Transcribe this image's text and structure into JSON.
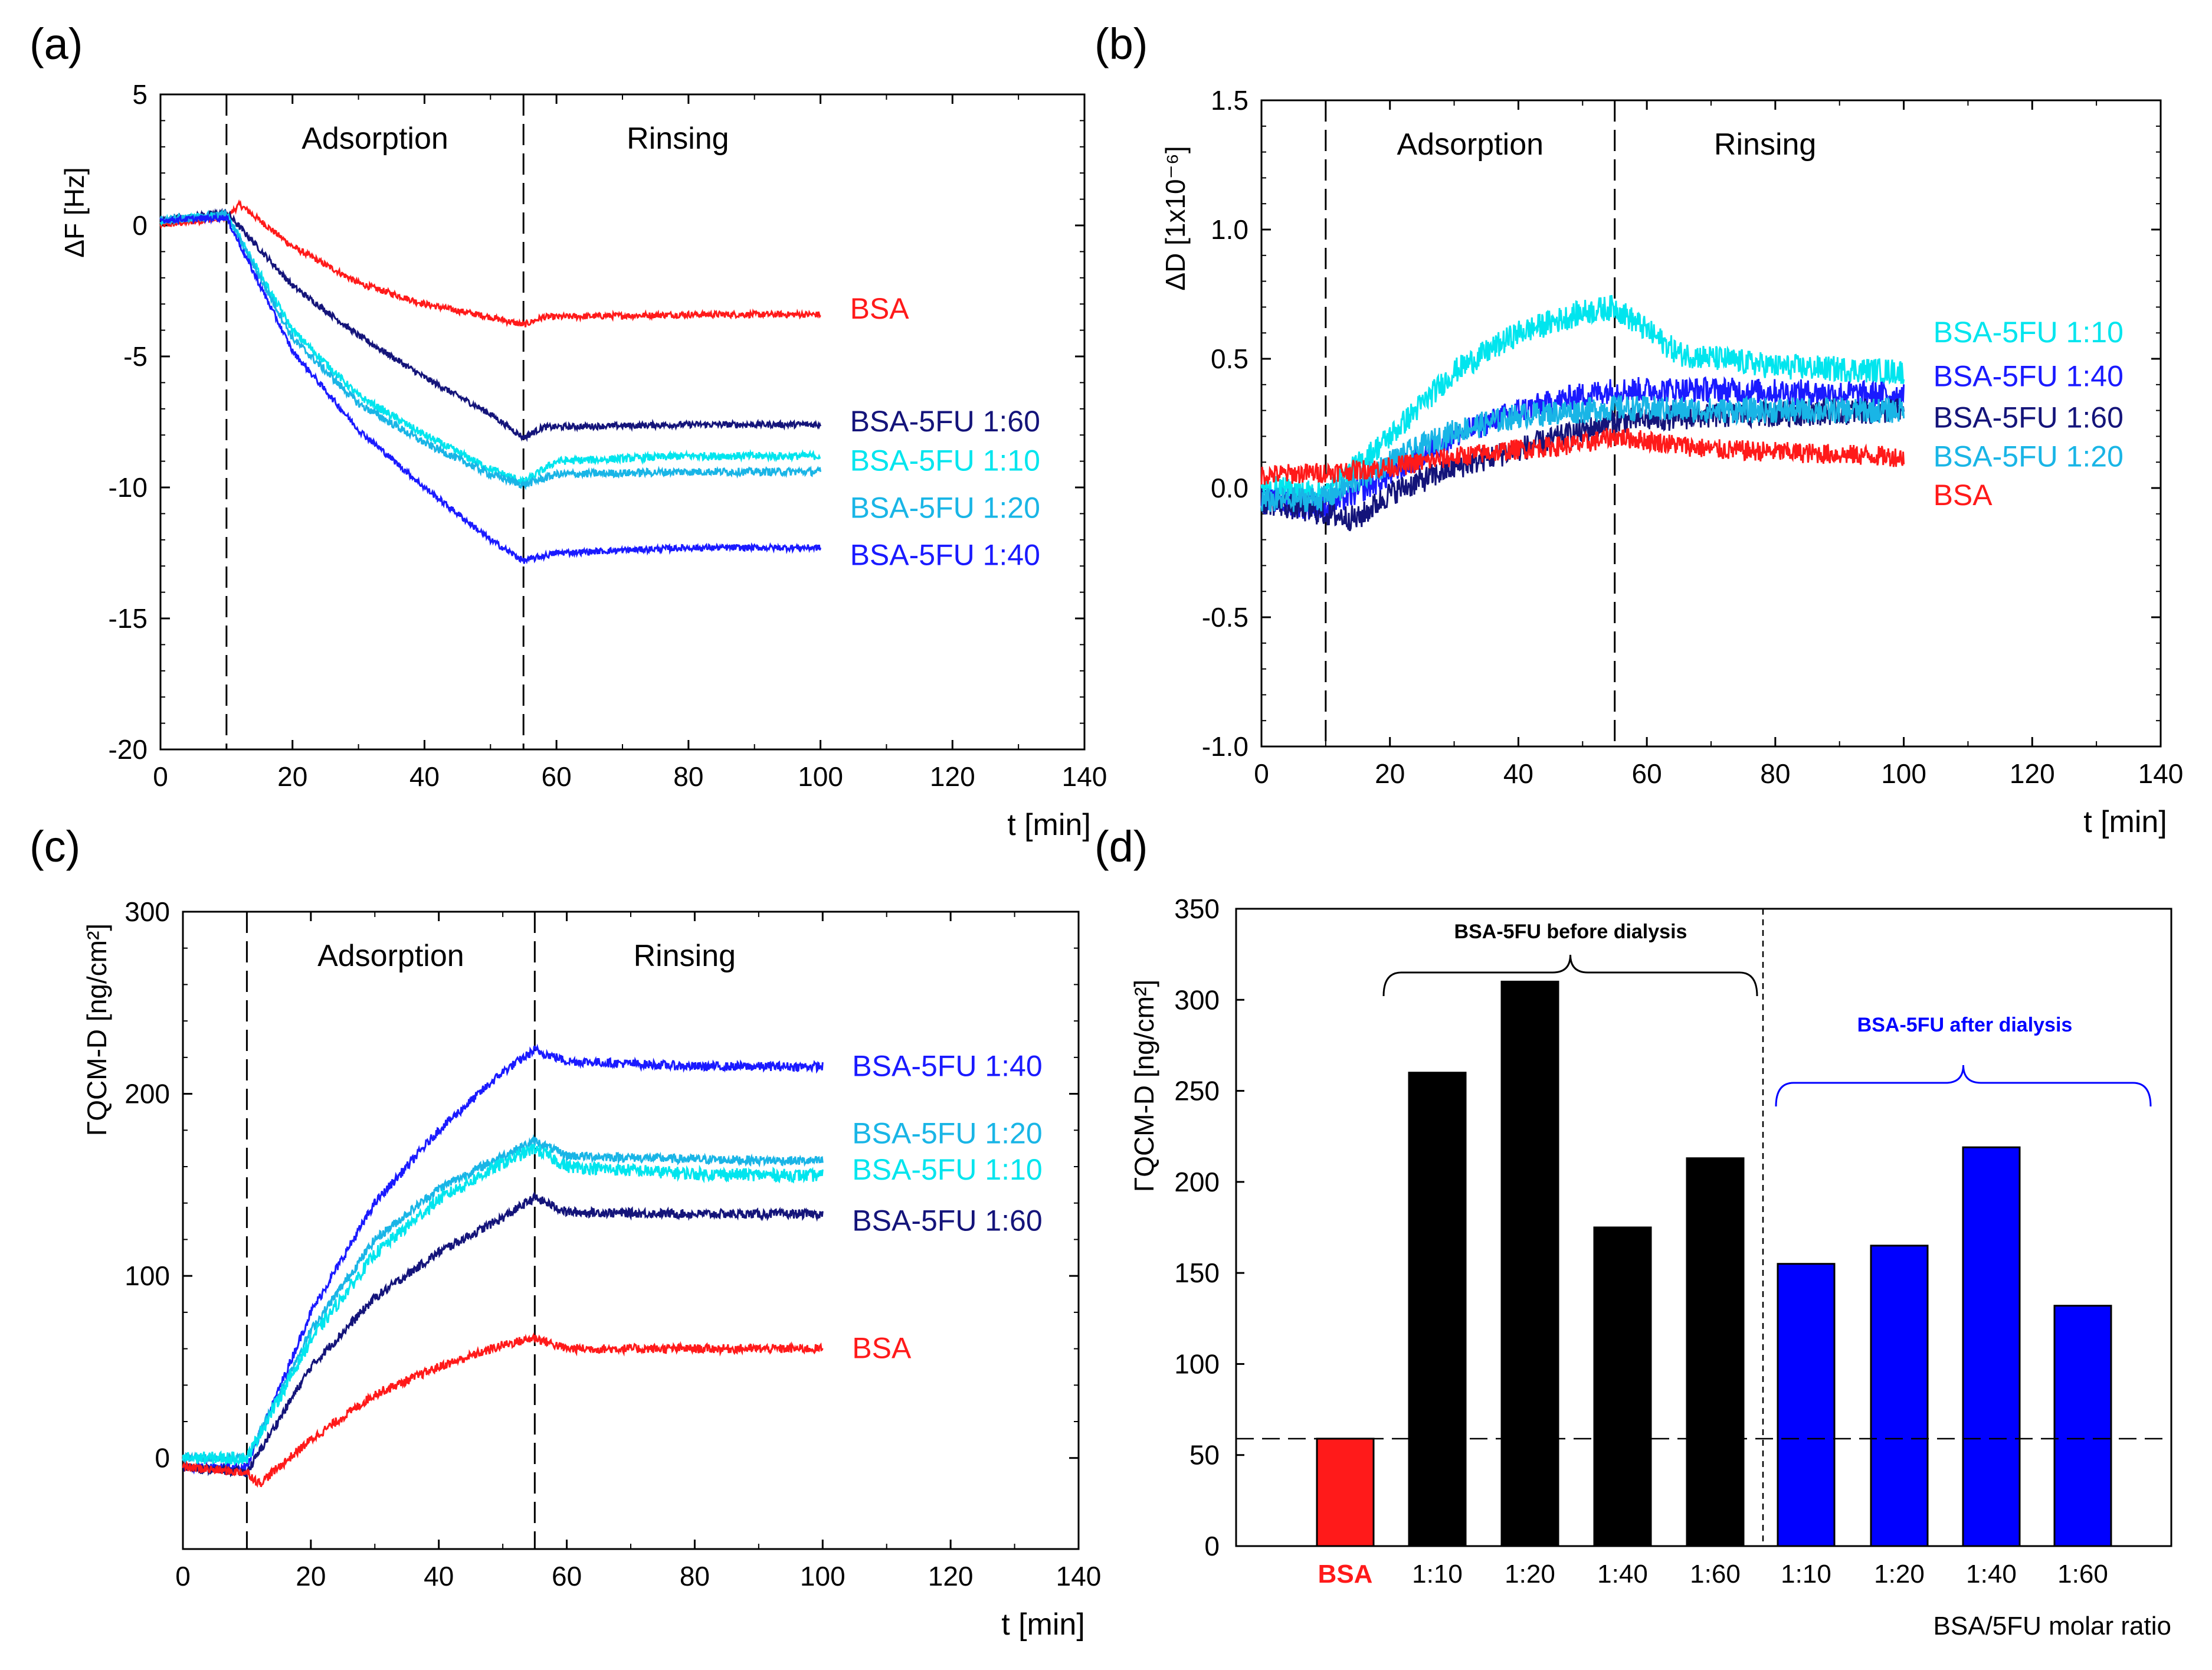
{
  "panels": [
    "(a)",
    "(b)",
    "(c)",
    "(d)"
  ],
  "colors": {
    "BSA": "#ff1a1a",
    "1:60": "#14147a",
    "1:10": "#00e5ee",
    "1:20": "#19b5e6",
    "1:40": "#1a1aff",
    "bar_before": "#000000",
    "bar_after": "#0000ff"
  },
  "chart_data": [
    {
      "id": "a",
      "type": "line",
      "ylabel": "ΔF [Hz]",
      "xlabel": "t [min]",
      "xlim": [
        0,
        140
      ],
      "ylim": [
        -20,
        5
      ],
      "xticks": [
        0,
        20,
        40,
        60,
        80,
        100,
        120,
        140
      ],
      "yticks": [
        5,
        0,
        -5,
        -10,
        -15,
        -20
      ],
      "vlines": [
        10,
        55
      ],
      "phase_labels": [
        "Adsorption",
        "Rinsing"
      ],
      "series": [
        {
          "name": "BSA",
          "label": "BSA",
          "color_key": "BSA",
          "noise": 0.12,
          "points": [
            [
              0,
              0
            ],
            [
              10,
              0.3
            ],
            [
              12,
              0.8
            ],
            [
              20,
              -0.8
            ],
            [
              30,
              -2.2
            ],
            [
              40,
              -3
            ],
            [
              50,
              -3.5
            ],
            [
              55,
              -3.8
            ],
            [
              58,
              -3.5
            ],
            [
              80,
              -3.4
            ],
            [
              100,
              -3.4
            ]
          ],
          "label_y": -3.2
        },
        {
          "name": "BSA-5FU 1:60",
          "label": "BSA-5FU 1:60",
          "color_key": "1:60",
          "noise": 0.12,
          "points": [
            [
              0,
              0.2
            ],
            [
              10,
              0.5
            ],
            [
              20,
              -2.3
            ],
            [
              30,
              -4.2
            ],
            [
              40,
              -5.8
            ],
            [
              50,
              -7.2
            ],
            [
              55,
              -8.1
            ],
            [
              58,
              -7.7
            ],
            [
              80,
              -7.6
            ],
            [
              100,
              -7.6
            ]
          ],
          "label_y": -7.5
        },
        {
          "name": "BSA-5FU 1:10",
          "label": "BSA-5FU 1:10",
          "color_key": "1:10",
          "noise": 0.15,
          "points": [
            [
              0,
              0.2
            ],
            [
              10,
              0.4
            ],
            [
              20,
              -4
            ],
            [
              30,
              -6.5
            ],
            [
              40,
              -8
            ],
            [
              50,
              -9.3
            ],
            [
              55,
              -9.8
            ],
            [
              60,
              -9
            ],
            [
              80,
              -8.8
            ],
            [
              100,
              -8.8
            ]
          ],
          "label_y": -9.0
        },
        {
          "name": "BSA-5FU 1:20",
          "label": "BSA-5FU 1:20",
          "color_key": "1:20",
          "noise": 0.15,
          "points": [
            [
              0,
              0.2
            ],
            [
              10,
              0.4
            ],
            [
              20,
              -4.3
            ],
            [
              30,
              -6.8
            ],
            [
              40,
              -8.3
            ],
            [
              50,
              -9.5
            ],
            [
              55,
              -9.9
            ],
            [
              60,
              -9.5
            ],
            [
              80,
              -9.4
            ],
            [
              100,
              -9.4
            ]
          ],
          "label_y": -10.8
        },
        {
          "name": "BSA-5FU 1:40",
          "label": "BSA-5FU 1:40",
          "color_key": "1:40",
          "noise": 0.12,
          "points": [
            [
              0,
              0.2
            ],
            [
              10,
              0.3
            ],
            [
              20,
              -4.8
            ],
            [
              30,
              -7.8
            ],
            [
              40,
              -10
            ],
            [
              50,
              -12
            ],
            [
              55,
              -12.8
            ],
            [
              60,
              -12.5
            ],
            [
              80,
              -12.3
            ],
            [
              100,
              -12.3
            ]
          ],
          "label_y": -12.6
        }
      ]
    },
    {
      "id": "b",
      "type": "line",
      "ylabel": "ΔD [1x10⁻⁶]",
      "xlabel": "t [min]",
      "xlim": [
        0,
        140
      ],
      "ylim": [
        -1.0,
        1.5
      ],
      "xticks": [
        0,
        20,
        40,
        60,
        80,
        100,
        120,
        140
      ],
      "yticks": [
        "1.5",
        "1.0",
        "0.5",
        "0.0",
        "-0.5",
        "-1.0"
      ],
      "vlines": [
        10,
        55
      ],
      "phase_labels": [
        "Adsorption",
        "Rinsing"
      ],
      "series": [
        {
          "name": "BSA-5FU 1:10",
          "label": "BSA-5FU 1:10",
          "color_key": "1:10",
          "noise": 0.05,
          "points": [
            [
              0,
              0
            ],
            [
              10,
              -0.02
            ],
            [
              20,
              0.2
            ],
            [
              30,
              0.45
            ],
            [
              40,
              0.6
            ],
            [
              50,
              0.68
            ],
            [
              55,
              0.7
            ],
            [
              65,
              0.52
            ],
            [
              80,
              0.47
            ],
            [
              100,
              0.45
            ]
          ],
          "label_y": 0.6
        },
        {
          "name": "BSA-5FU 1:40",
          "label": "BSA-5FU 1:40",
          "color_key": "1:40",
          "noise": 0.05,
          "points": [
            [
              0,
              -0.05
            ],
            [
              10,
              -0.08
            ],
            [
              20,
              0.05
            ],
            [
              30,
              0.2
            ],
            [
              40,
              0.3
            ],
            [
              50,
              0.36
            ],
            [
              55,
              0.38
            ],
            [
              70,
              0.38
            ],
            [
              100,
              0.36
            ]
          ],
          "label_y": 0.43
        },
        {
          "name": "BSA-5FU 1:60",
          "label": "BSA-5FU 1:60",
          "color_key": "1:60",
          "noise": 0.05,
          "points": [
            [
              0,
              -0.05
            ],
            [
              10,
              -0.1
            ],
            [
              15,
              -0.12
            ],
            [
              20,
              -0.02
            ],
            [
              30,
              0.08
            ],
            [
              40,
              0.15
            ],
            [
              50,
              0.22
            ],
            [
              55,
              0.26
            ],
            [
              70,
              0.28
            ],
            [
              100,
              0.3
            ]
          ],
          "label_y": 0.27
        },
        {
          "name": "BSA-5FU 1:20",
          "label": "BSA-5FU 1:20",
          "color_key": "1:20",
          "noise": 0.05,
          "points": [
            [
              0,
              -0.05
            ],
            [
              10,
              -0.04
            ],
            [
              20,
              0.1
            ],
            [
              30,
              0.22
            ],
            [
              40,
              0.28
            ],
            [
              50,
              0.3
            ],
            [
              55,
              0.31
            ],
            [
              70,
              0.3
            ],
            [
              100,
              0.3
            ]
          ],
          "label_y": 0.12
        },
        {
          "name": "BSA",
          "label": "BSA",
          "color_key": "BSA",
          "noise": 0.04,
          "points": [
            [
              0,
              0.05
            ],
            [
              10,
              0.06
            ],
            [
              20,
              0.08
            ],
            [
              30,
              0.12
            ],
            [
              40,
              0.15
            ],
            [
              50,
              0.17
            ],
            [
              55,
              0.2
            ],
            [
              70,
              0.15
            ],
            [
              100,
              0.12
            ]
          ],
          "label_y": -0.03
        }
      ]
    },
    {
      "id": "c",
      "type": "line",
      "ylabel": "ΓQCM-D [ng/cm²]",
      "xlabel": "t [min]",
      "xlim": [
        0,
        140
      ],
      "ylim": [
        -50,
        300
      ],
      "xticks": [
        0,
        20,
        40,
        60,
        80,
        100,
        120,
        140
      ],
      "yticks": [
        300,
        200,
        100,
        0
      ],
      "vlines": [
        10,
        55
      ],
      "phase_labels": [
        "Adsorption",
        "Rinsing"
      ],
      "series": [
        {
          "name": "BSA-5FU 1:40",
          "label": "BSA-5FU 1:40",
          "color_key": "1:40",
          "noise": 2.5,
          "points": [
            [
              0,
              -5
            ],
            [
              10,
              -5
            ],
            [
              20,
              80
            ],
            [
              30,
              140
            ],
            [
              40,
              180
            ],
            [
              50,
              212
            ],
            [
              55,
              224
            ],
            [
              60,
              218
            ],
            [
              80,
              215
            ],
            [
              100,
              215
            ]
          ],
          "label_y": 215
        },
        {
          "name": "BSA-5FU 1:20",
          "label": "BSA-5FU 1:20",
          "color_key": "1:20",
          "noise": 2.5,
          "points": [
            [
              0,
              0
            ],
            [
              10,
              0
            ],
            [
              20,
              70
            ],
            [
              30,
              120
            ],
            [
              40,
              148
            ],
            [
              50,
              166
            ],
            [
              55,
              174
            ],
            [
              60,
              166
            ],
            [
              80,
              164
            ],
            [
              100,
              163
            ]
          ],
          "label_y": 178
        },
        {
          "name": "BSA-5FU 1:10",
          "label": "BSA-5FU 1:10",
          "color_key": "1:10",
          "noise": 3.5,
          "points": [
            [
              0,
              0
            ],
            [
              10,
              0
            ],
            [
              20,
              65
            ],
            [
              30,
              112
            ],
            [
              40,
              142
            ],
            [
              50,
              162
            ],
            [
              55,
              170
            ],
            [
              60,
              160
            ],
            [
              80,
              156
            ],
            [
              100,
              155
            ]
          ],
          "label_y": 158
        },
        {
          "name": "BSA-5FU 1:60",
          "label": "BSA-5FU 1:60",
          "color_key": "1:60",
          "noise": 2.5,
          "points": [
            [
              0,
              -5
            ],
            [
              10,
              -8
            ],
            [
              20,
              50
            ],
            [
              30,
              88
            ],
            [
              40,
              113
            ],
            [
              50,
              132
            ],
            [
              55,
              143
            ],
            [
              60,
              135
            ],
            [
              80,
              134
            ],
            [
              100,
              134
            ]
          ],
          "label_y": 130
        },
        {
          "name": "BSA",
          "label": "BSA",
          "color_key": "BSA",
          "noise": 2.5,
          "points": [
            [
              0,
              -5
            ],
            [
              10,
              -8
            ],
            [
              12,
              -14
            ],
            [
              20,
              10
            ],
            [
              30,
              35
            ],
            [
              40,
              50
            ],
            [
              50,
              62
            ],
            [
              55,
              66
            ],
            [
              60,
              60
            ],
            [
              80,
              60
            ],
            [
              100,
              60
            ]
          ],
          "label_y": 60
        }
      ]
    },
    {
      "id": "d",
      "type": "bar",
      "ylabel": "ΓQCM-D [ng/cm²]",
      "xlabel": "BSA/5FU molar ratio",
      "ylim": [
        0,
        350
      ],
      "yticks": [
        350,
        300,
        250,
        200,
        150,
        100,
        50,
        0
      ],
      "categories": [
        "BSA",
        "1:10",
        "1:20",
        "1:40",
        "1:60",
        "1:10",
        "1:20",
        "1:40",
        "1:60"
      ],
      "values": [
        59,
        260,
        310,
        175,
        213,
        155,
        165,
        219,
        132
      ],
      "groups": [
        "BSA",
        "before",
        "before",
        "before",
        "before",
        "after",
        "after",
        "after",
        "after"
      ],
      "group_labels": {
        "before": "BSA-5FU before dialysis",
        "after": "BSA-5FU after dialysis"
      },
      "reference_line": 59
    }
  ]
}
